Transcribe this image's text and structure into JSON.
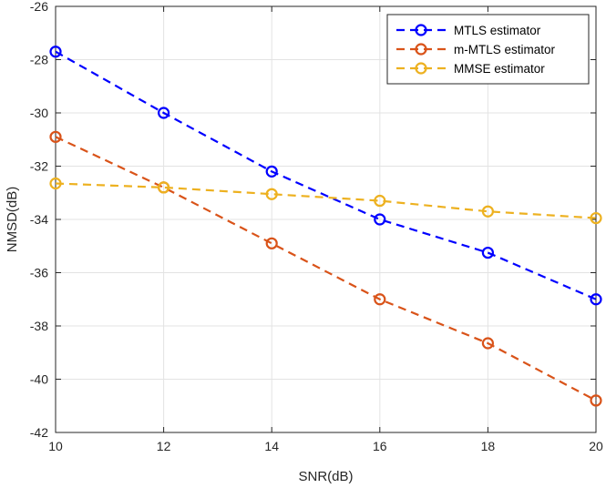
{
  "chart_data": {
    "type": "line",
    "title": "",
    "xlabel": "SNR(dB)",
    "ylabel": "NMSD(dB)",
    "x": [
      10,
      12,
      14,
      16,
      18,
      20
    ],
    "xlim": [
      10,
      20
    ],
    "ylim": [
      -42,
      -26
    ],
    "xticks": [
      10,
      12,
      14,
      16,
      18,
      20
    ],
    "yticks": [
      -42,
      -40,
      -38,
      -36,
      -34,
      -32,
      -30,
      -28,
      -26
    ],
    "grid": true,
    "legend_position": "top-right",
    "series": [
      {
        "name": "MTLS estimator",
        "color": "#0000ff",
        "values": [
          -27.7,
          -30.0,
          -32.2,
          -34.0,
          -35.25,
          -37.0
        ]
      },
      {
        "name": "m-MTLS estimator",
        "color": "#d95319",
        "values": [
          -30.9,
          -32.8,
          -34.9,
          -37.0,
          -38.65,
          -40.8
        ]
      },
      {
        "name": "MMSE estimator",
        "color": "#edb120",
        "values": [
          -32.65,
          -32.8,
          -33.05,
          -33.3,
          -33.7,
          -33.95
        ]
      }
    ]
  }
}
